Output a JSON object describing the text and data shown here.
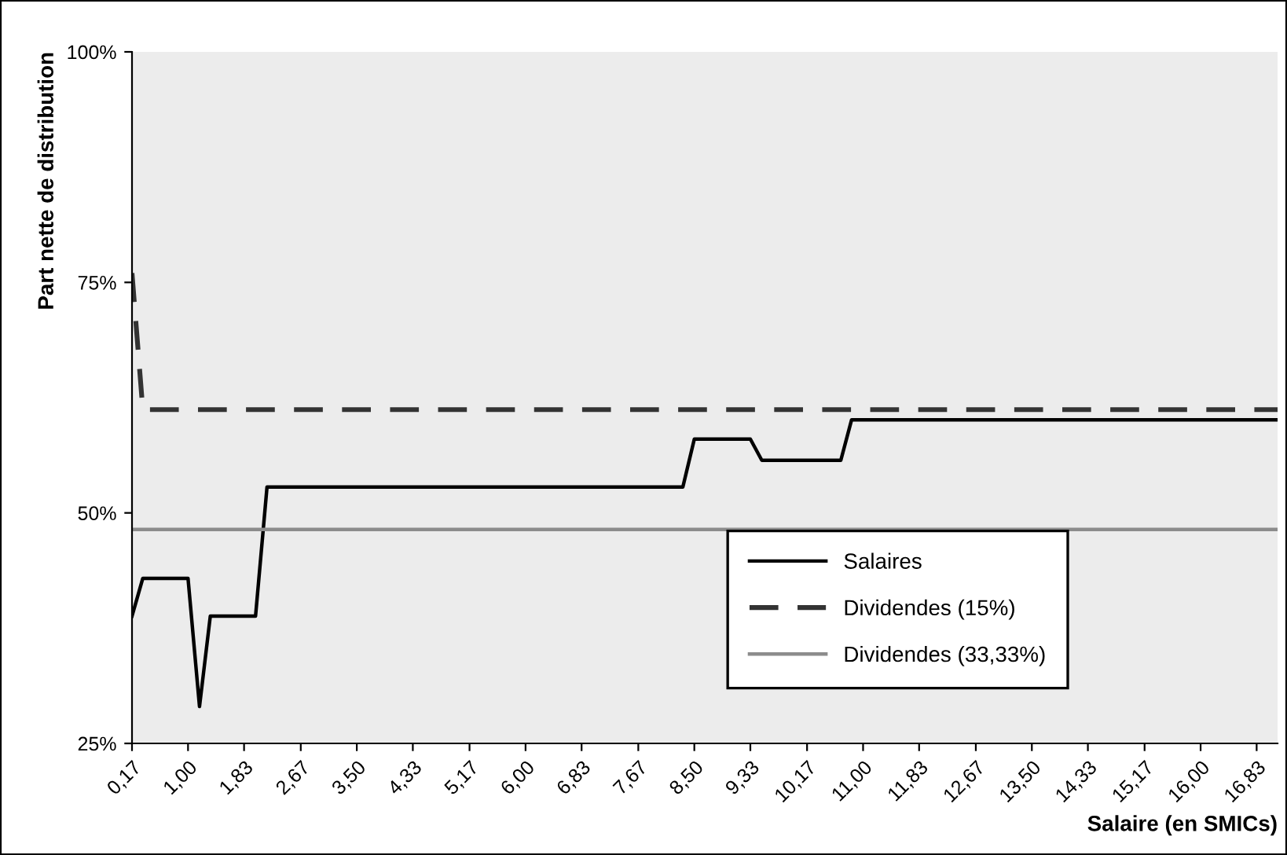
{
  "chart_data": {
    "type": "line",
    "xlabel": "Salaire (en SMICs)",
    "ylabel": "Part nette de distribution",
    "xlim": [
      0.17,
      17.14
    ],
    "xticks": [
      {
        "value": 0.17,
        "label": "0,17"
      },
      {
        "value": 1.0,
        "label": "1,00"
      },
      {
        "value": 1.83,
        "label": "1,83"
      },
      {
        "value": 2.67,
        "label": "2,67"
      },
      {
        "value": 3.5,
        "label": "3,50"
      },
      {
        "value": 4.33,
        "label": "4,33"
      },
      {
        "value": 5.17,
        "label": "5,17"
      },
      {
        "value": 6.0,
        "label": "6,00"
      },
      {
        "value": 6.83,
        "label": "6,83"
      },
      {
        "value": 7.67,
        "label": "7,67"
      },
      {
        "value": 8.5,
        "label": "8,50"
      },
      {
        "value": 9.33,
        "label": "9,33"
      },
      {
        "value": 10.17,
        "label": "10,17"
      },
      {
        "value": 11.0,
        "label": "11,00"
      },
      {
        "value": 11.83,
        "label": "11,83"
      },
      {
        "value": 12.67,
        "label": "12,67"
      },
      {
        "value": 13.5,
        "label": "13,50"
      },
      {
        "value": 14.33,
        "label": "14,33"
      },
      {
        "value": 15.17,
        "label": "15,17"
      },
      {
        "value": 16.0,
        "label": "16,00"
      },
      {
        "value": 16.83,
        "label": "16,83"
      }
    ],
    "ylim": [
      25,
      100
    ],
    "yticks": [
      {
        "value": 25,
        "label": "25%"
      },
      {
        "value": 50,
        "label": "50%"
      },
      {
        "value": 75,
        "label": "75%"
      },
      {
        "value": 100,
        "label": "100%"
      }
    ],
    "grid": false,
    "legend": "bottom right",
    "marker": "none",
    "series": [
      {
        "name": "Salaires",
        "color": "#000000",
        "line_style": "solid",
        "x": [
          0.17,
          0.33,
          1.0,
          1.17,
          1.33,
          2.0,
          2.17,
          8.33,
          8.5,
          9.33,
          9.5,
          10.67,
          10.83,
          17.14
        ],
        "values": [
          38.8,
          42.9,
          42.9,
          29,
          38.8,
          38.8,
          52.8,
          52.8,
          58.0,
          58.0,
          55.7,
          55.7,
          60.1,
          60.1
        ]
      },
      {
        "name": "Dividendes (15%)",
        "color": "#333333",
        "line_style": "dashed",
        "x": [
          0.17,
          0.33,
          17.14
        ],
        "values": [
          76,
          61.2,
          61.2
        ]
      },
      {
        "name": "Dividendes (33,33%)",
        "color": "#8c8c8c",
        "line_style": "solid",
        "x": [
          0.17,
          17.14
        ],
        "values": [
          48.2,
          48.2
        ]
      }
    ]
  }
}
